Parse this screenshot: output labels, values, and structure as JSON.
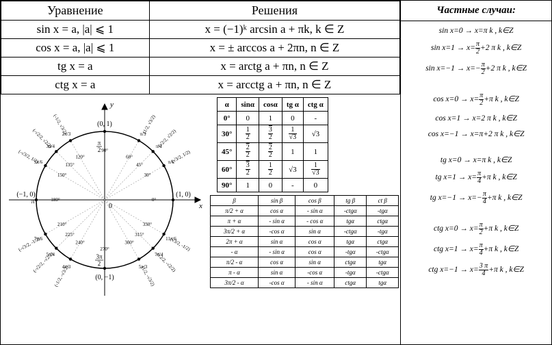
{
  "eqTable": {
    "headers": [
      "Уравнение",
      "Решения"
    ],
    "rows": [
      [
        "sin x = a,  |a| ⩽ 1",
        "x = (−1)ᵏ arcsin a + πk,  k ∈ Z"
      ],
      [
        "cos x = a,  |a| ⩽ 1",
        "x = ± arccos a + 2πn,  n ∈ Z"
      ],
      [
        "tg x = a",
        "x = arctg a + πn,  n ∈ Z"
      ],
      [
        "ctg x = a",
        "x = arcctg a + πn,  n ∈ Z"
      ]
    ]
  },
  "rightTitle": "Частные случаи:",
  "specialCases": [
    "sin x=0 → x=π k , k∈Z",
    "sin x=1 → x=<f>π|2</f>+2 π k , k∈Z",
    "sin x=−1 → x=−<f>π|2</f>+2 π k , k∈Z",
    "GAP",
    "cos x=0 → x=<f>π|2</f>+π k , k∈Z",
    "cos x=1 → x=2 π k , k∈Z",
    "cos x=−1 → x=π+2 π k , k∈Z",
    "GAP",
    "tg x=0 → x=π k , k∈Z",
    "tg x=1 → x=<f>π|4</f>+π k , k∈Z",
    "tg x=−1 → x=−<f>π|4</f>+π k , k∈Z",
    "GAP",
    "ctg x=0 → x=<f>π|2</f>+π k , k∈Z",
    "ctg x=1 → x=<f>π|4</f>+π k , k∈Z",
    "ctg x=−1 → x=<f>3 π|4</f>+π k , k∈Z"
  ],
  "trigVals": {
    "headers": [
      "α",
      "sinα",
      "cosα",
      "tg α",
      "ctg α"
    ],
    "rows": [
      [
        "0°",
        "0",
        "1",
        "0",
        "-"
      ],
      [
        "30°",
        "<f>1|2</f>",
        "<f>√3|2</f>",
        "<f>1|√3</f>",
        "√3"
      ],
      [
        "45°",
        "<f>√2|2</f>",
        "<f>√2|2</f>",
        "1",
        "1"
      ],
      [
        "60°",
        "<f>√3|2</f>",
        "<f>1|2</f>",
        "√3",
        "<f>1|√3</f>"
      ],
      [
        "90°",
        "1",
        "0",
        "-",
        "0"
      ]
    ]
  },
  "reduction": {
    "headers": [
      "β",
      "sin β",
      "cos β",
      "tg β",
      "ct β"
    ],
    "rows": [
      [
        "π/2 + α",
        "cos α",
        "- sin α",
        "-ctgα",
        "-tgα"
      ],
      [
        "π + α",
        "- sin α",
        "- cos α",
        "tgα",
        "ctgα"
      ],
      [
        "3π/2 + α",
        "-cos α",
        "sin α",
        "-ctgα",
        "-tgα"
      ],
      [
        "2π + α",
        "sin α",
        "cos α",
        "tgα",
        "ctgα"
      ],
      [
        "- α",
        "- sin α",
        "cos α",
        "-tgα",
        "-ctgα"
      ],
      [
        "π/2 - α",
        "cos α",
        "sin α",
        "ctgα",
        "tgα"
      ],
      [
        "π - α",
        "sin α",
        "-cos α",
        "-tgα",
        "-ctgα"
      ],
      [
        "3π/2 - α",
        "-cos α",
        "- sin α",
        "ctgα",
        "tgα"
      ]
    ]
  },
  "circle": {
    "axisLabels": {
      "x": "x",
      "y": "y",
      "zero": "0"
    },
    "pointLabels": [
      "(0, 1)",
      "(1, 0)",
      "(0, −1)",
      "(−1, 0)"
    ],
    "piLabels": [
      "π/2",
      "π",
      "3π/2"
    ],
    "degreeLabels": [
      "0°",
      "30°",
      "45°",
      "60°",
      "90°",
      "120°",
      "135°",
      "150°",
      "180°",
      "210°",
      "225°",
      "240°",
      "270°",
      "300°",
      "315°",
      "330°"
    ]
  }
}
